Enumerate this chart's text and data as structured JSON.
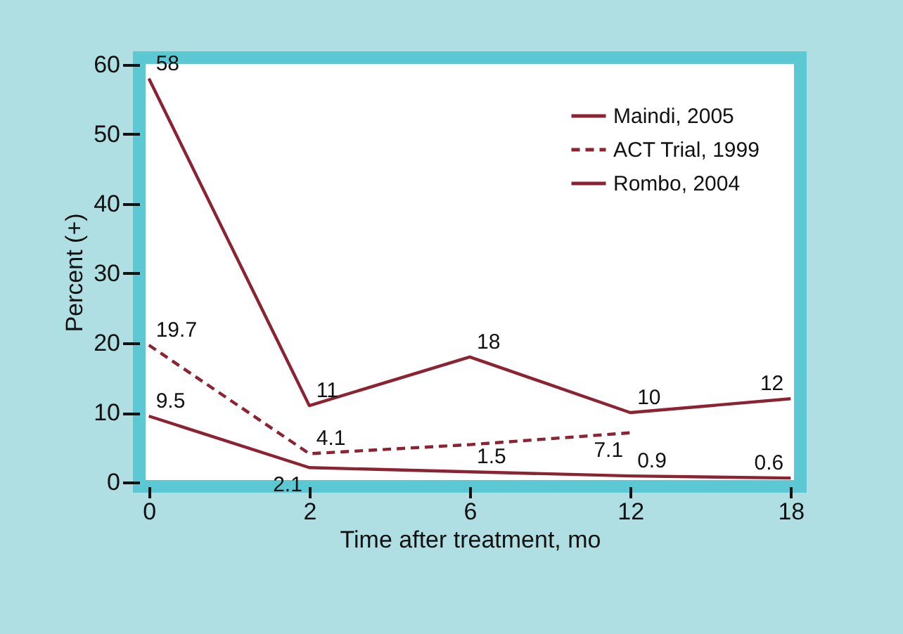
{
  "chart_data": {
    "type": "line",
    "xlabel": "Time after treatment, mo",
    "ylabel": "Percent (+)",
    "categories": [
      "0",
      "2",
      "6",
      "12",
      "18"
    ],
    "series": [
      {
        "name": "Maindi, 2005",
        "color": "#8b2332",
        "line_style": "solid",
        "values": [
          58,
          11,
          18,
          10,
          12
        ],
        "value_labels": [
          "58",
          "11",
          "18",
          "10",
          "12"
        ]
      },
      {
        "name": "ACT Trial, 1999",
        "color": "#8b2332",
        "line_style": "dashed",
        "values": [
          19.7,
          4.1,
          5.4,
          7.1,
          null
        ],
        "value_labels": [
          "19.7",
          "4.1",
          null,
          "7.1",
          null
        ]
      },
      {
        "name": "Rombo, 2004",
        "color": "#8b2332",
        "line_style": "solid",
        "values": [
          9.5,
          2.1,
          1.5,
          0.9,
          0.6
        ],
        "value_labels": [
          "9.5",
          "2.1",
          "1.5",
          "0.9",
          "0.6"
        ]
      }
    ],
    "ylim": [
      -0.6,
      61
    ],
    "yticks": [
      0,
      10,
      20,
      30,
      40,
      50,
      60
    ],
    "grid": false,
    "legend": "top right",
    "marker": "none"
  }
}
